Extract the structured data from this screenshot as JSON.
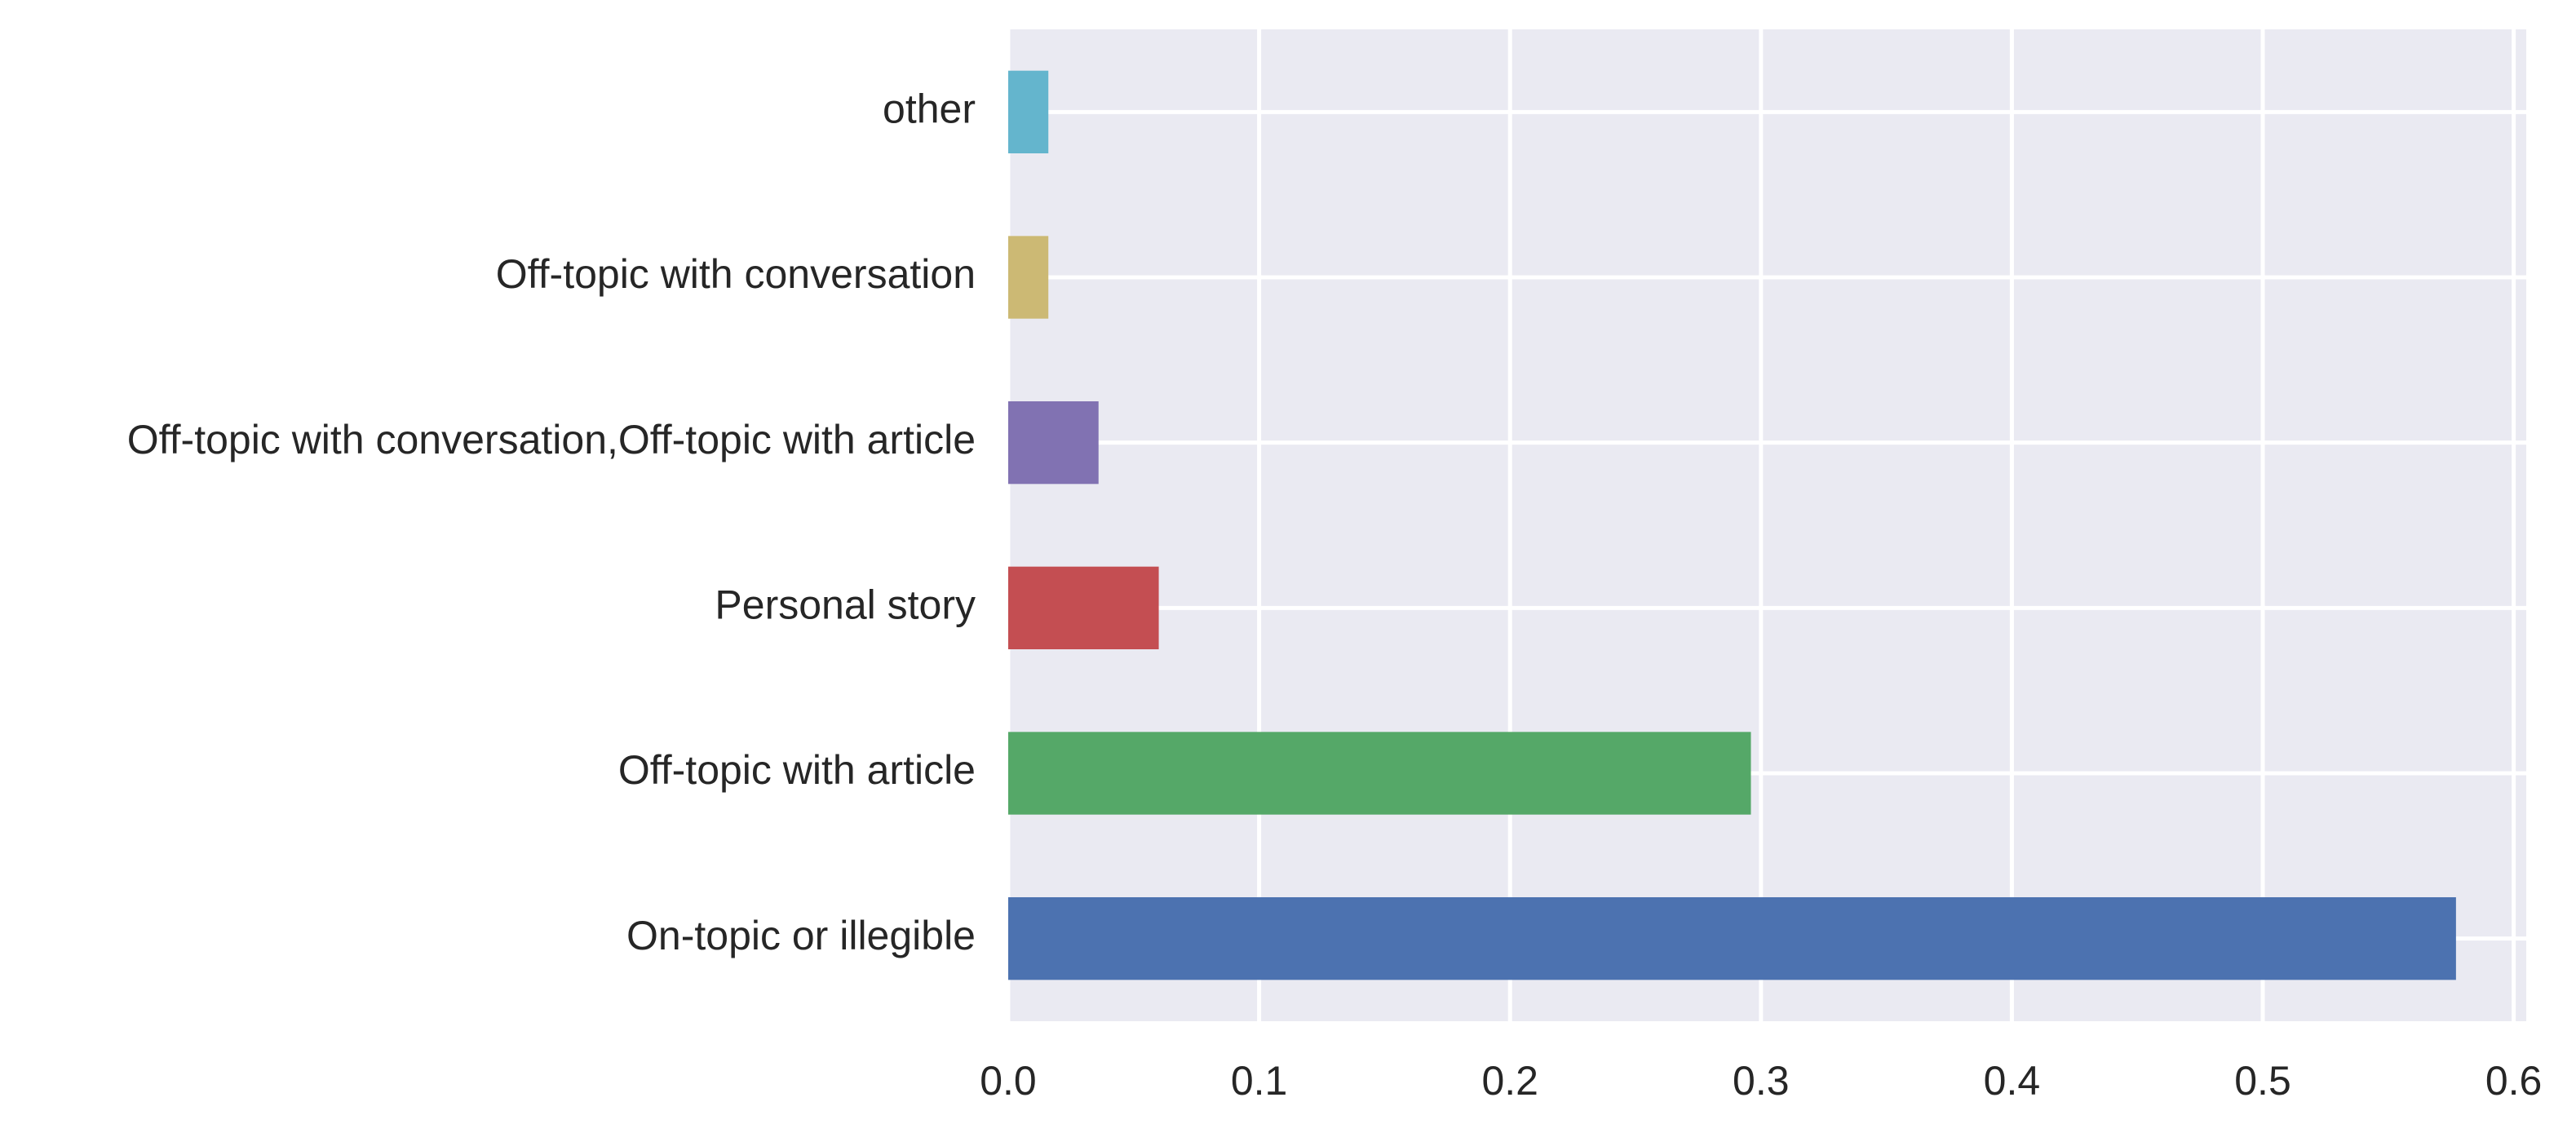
{
  "chart_data": {
    "type": "bar",
    "orientation": "horizontal",
    "title": "",
    "xlabel": "",
    "ylabel": "",
    "categories": [
      "On-topic or illegible",
      "Off-topic with article",
      "Personal story",
      "Off-topic with conversation,Off-topic with article",
      "Off-topic with conversation",
      "other"
    ],
    "values": [
      0.577,
      0.296,
      0.06,
      0.036,
      0.016,
      0.016
    ],
    "colors": [
      "#4C72B0",
      "#55A868",
      "#C44E52",
      "#8172B2",
      "#CCB974",
      "#64B5CD"
    ],
    "xlim": [
      0,
      0.605
    ],
    "xticks": [
      0.0,
      0.1,
      0.2,
      0.3,
      0.4,
      0.5,
      0.6
    ],
    "xtick_labels": [
      "0.0",
      "0.1",
      "0.2",
      "0.3",
      "0.4",
      "0.5",
      "0.6"
    ],
    "grid": true,
    "legend": "none",
    "background": "#EAEAF2"
  }
}
